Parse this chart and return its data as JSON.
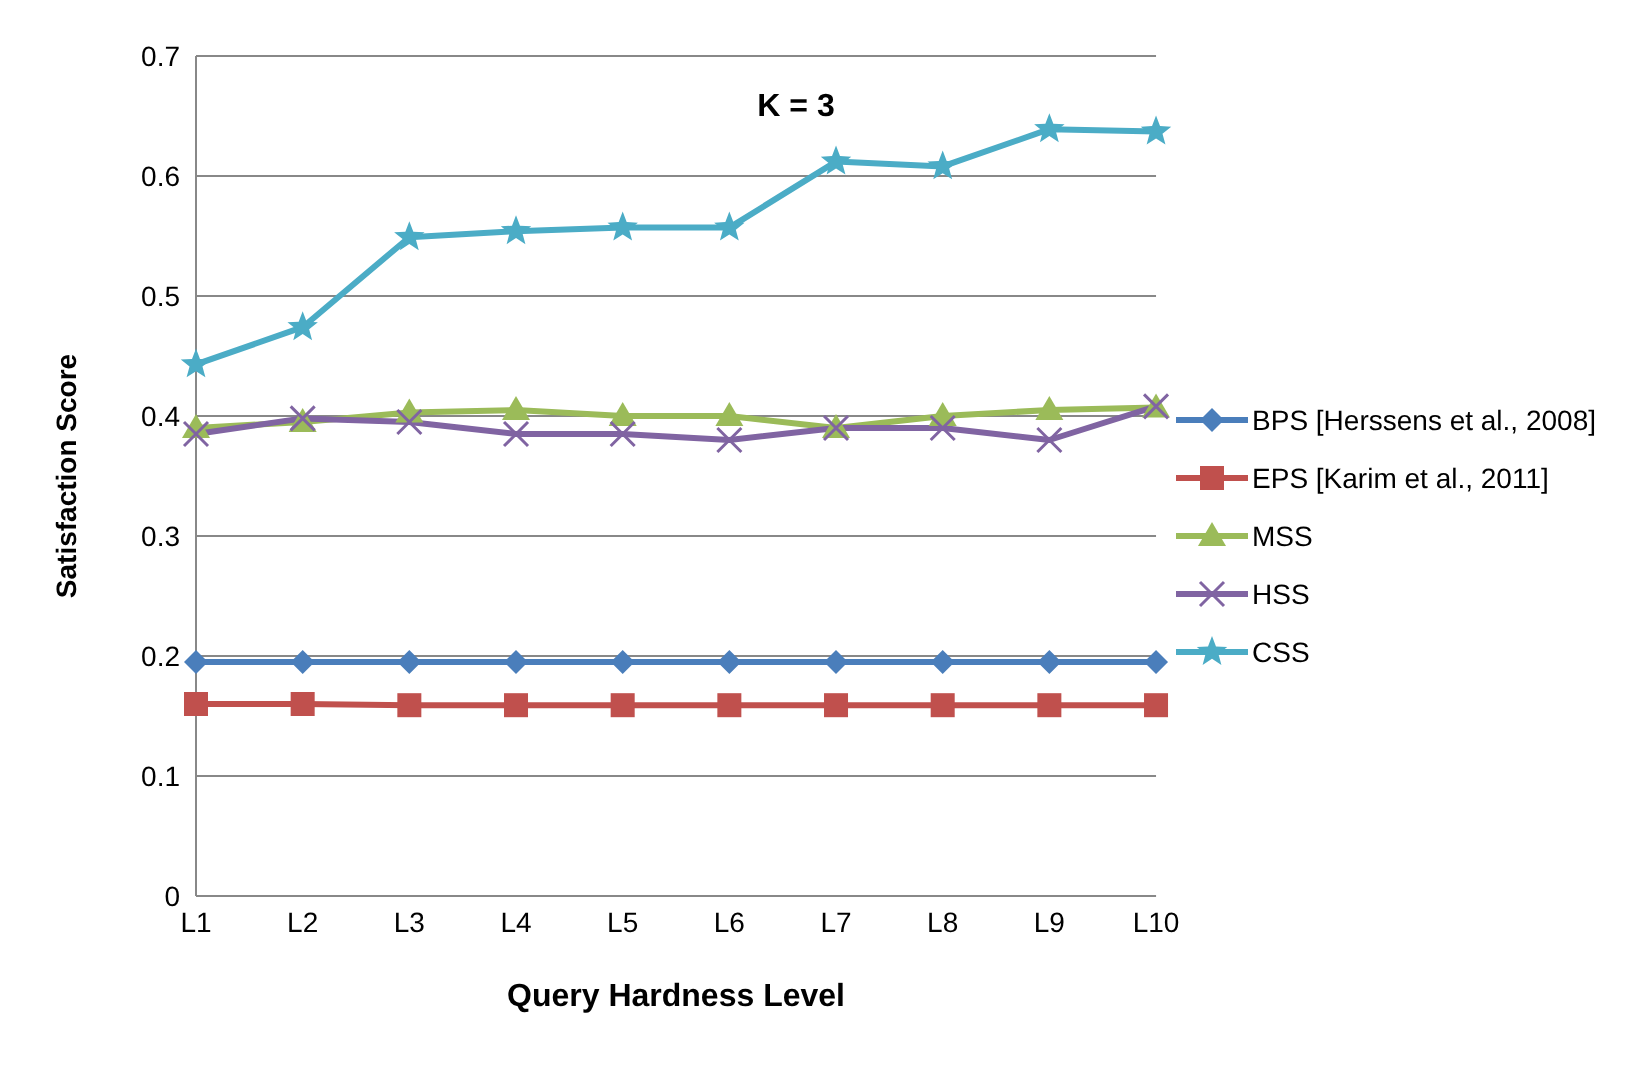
{
  "chart_data": {
    "type": "line",
    "title": "K = 3",
    "xlabel": "Query Hardness Level",
    "ylabel": "Satisfaction Score",
    "categories": [
      "L1",
      "L2",
      "L3",
      "L4",
      "L5",
      "L6",
      "L7",
      "L8",
      "L9",
      "L10"
    ],
    "series": [
      {
        "name": "BPS [Herssens et al., 2008]",
        "color": "#4a7ebb",
        "marker": "diamond",
        "values": [
          0.195,
          0.195,
          0.195,
          0.195,
          0.195,
          0.195,
          0.195,
          0.195,
          0.195,
          0.195
        ]
      },
      {
        "name": "EPS [Karim et al., 2011]",
        "color": "#c0504d",
        "marker": "square",
        "values": [
          0.16,
          0.16,
          0.159,
          0.159,
          0.159,
          0.159,
          0.159,
          0.159,
          0.159,
          0.159
        ]
      },
      {
        "name": "MSS",
        "color": "#9bbb59",
        "marker": "triangle",
        "values": [
          0.39,
          0.395,
          0.403,
          0.405,
          0.4,
          0.4,
          0.39,
          0.4,
          0.405,
          0.407
        ]
      },
      {
        "name": "HSS",
        "color": "#8064a2",
        "marker": "cross",
        "values": [
          0.385,
          0.398,
          0.395,
          0.385,
          0.385,
          0.38,
          0.39,
          0.39,
          0.38,
          0.408
        ]
      },
      {
        "name": "CSS",
        "color": "#4bacc6",
        "marker": "star",
        "values": [
          0.443,
          0.474,
          0.549,
          0.554,
          0.557,
          0.557,
          0.612,
          0.608,
          0.639,
          0.637
        ]
      }
    ],
    "ylim": [
      0,
      0.7
    ],
    "yticks": [
      0,
      0.1,
      0.2,
      0.3,
      0.4,
      0.5,
      0.6,
      0.7
    ],
    "grid": "y",
    "legend": "right",
    "line_style": "solid"
  }
}
